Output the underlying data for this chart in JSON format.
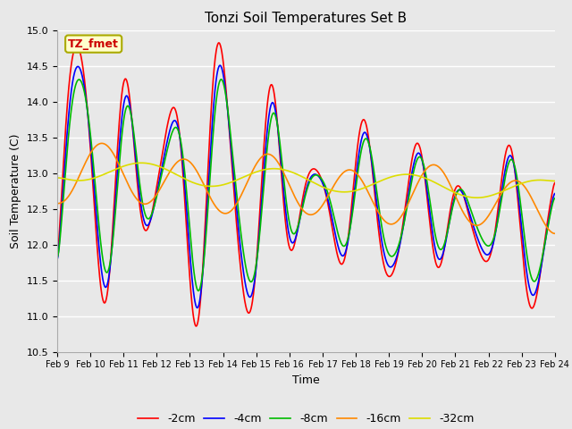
{
  "title": "Tonzi Soil Temperatures Set B",
  "xlabel": "Time",
  "ylabel": "Soil Temperature (C)",
  "annotation": "TZ_fmet",
  "ylim": [
    10.5,
    15.0
  ],
  "yticks": [
    10.5,
    11.0,
    11.5,
    12.0,
    12.5,
    13.0,
    13.5,
    14.0,
    14.5,
    15.0
  ],
  "series_labels": [
    "-2cm",
    "-4cm",
    "-8cm",
    "-16cm",
    "-32cm"
  ],
  "series_colors": [
    "#ff0000",
    "#0000ff",
    "#00bb00",
    "#ff8800",
    "#dddd00"
  ],
  "x_tick_labels": [
    "Feb 9",
    "Feb 10",
    "Feb 11",
    "Feb 12",
    "Feb 13",
    "Feb 14",
    "Feb 15",
    "Feb 16",
    "Feb 17",
    "Feb 18",
    "Feb 19",
    "Feb 20",
    "Feb 21",
    "Feb 22",
    "Feb 23",
    "Feb 24"
  ],
  "plot_bg_color": "#e8e8e8",
  "fig_bg_color": "#e8e8e8",
  "grid_color": "#ffffff"
}
